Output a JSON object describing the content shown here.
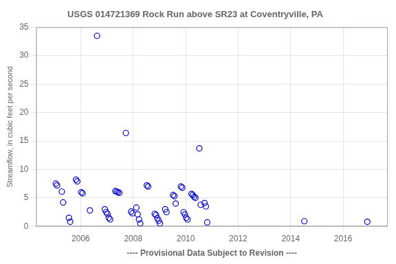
{
  "chart_data": {
    "type": "scatter",
    "title": "USGS 014721369 Rock Run above SR23 at Coventryville, PA",
    "xlabel": "---- Provisional Data Subject to Revision ----",
    "ylabel": "Streamflow, in cubic feet per second",
    "x": [
      2005.05,
      2005.1,
      2005.28,
      2005.33,
      2005.55,
      2005.6,
      2005.82,
      2005.87,
      2006.02,
      2006.07,
      2006.35,
      2006.62,
      2006.92,
      2006.97,
      2007.02,
      2007.07,
      2007.12,
      2007.32,
      2007.37,
      2007.42,
      2007.47,
      2007.72,
      2007.92,
      2007.97,
      2008.12,
      2008.17,
      2008.22,
      2008.27,
      2008.52,
      2008.57,
      2008.82,
      2008.87,
      2008.92,
      2008.97,
      2009.02,
      2009.22,
      2009.27,
      2009.52,
      2009.57,
      2009.62,
      2009.82,
      2009.87,
      2009.92,
      2009.97,
      2010.02,
      2010.07,
      2010.22,
      2010.27,
      2010.32,
      2010.37,
      2010.52,
      2010.57,
      2010.72,
      2010.77,
      2010.82,
      2014.52,
      2016.92
    ],
    "values": [
      7.5,
      7.2,
      6.1,
      4.2,
      1.5,
      0.8,
      8.2,
      7.9,
      6.0,
      5.8,
      2.8,
      33.5,
      3.0,
      2.5,
      2.2,
      1.5,
      1.2,
      6.2,
      6.1,
      6.0,
      5.9,
      16.4,
      2.6,
      2.3,
      3.3,
      2.1,
      1.2,
      0.5,
      7.2,
      7.0,
      2.2,
      2.0,
      1.4,
      1.0,
      0.5,
      3.0,
      2.5,
      5.5,
      5.3,
      4.0,
      7.0,
      6.8,
      2.5,
      2.1,
      1.5,
      1.2,
      5.7,
      5.5,
      5.2,
      5.0,
      13.7,
      3.8,
      4.1,
      3.5,
      0.7,
      0.9,
      0.8
    ],
    "color": "#0000CC",
    "marker": "circle",
    "xlim": [
      2004.3,
      2017.7
    ],
    "ylim": [
      0,
      35
    ],
    "xticks": [
      2006,
      2008,
      2010,
      2012,
      2014,
      2016
    ],
    "yticks": [
      0,
      5,
      10,
      15,
      20,
      25,
      30,
      35
    ],
    "grid": true
  }
}
